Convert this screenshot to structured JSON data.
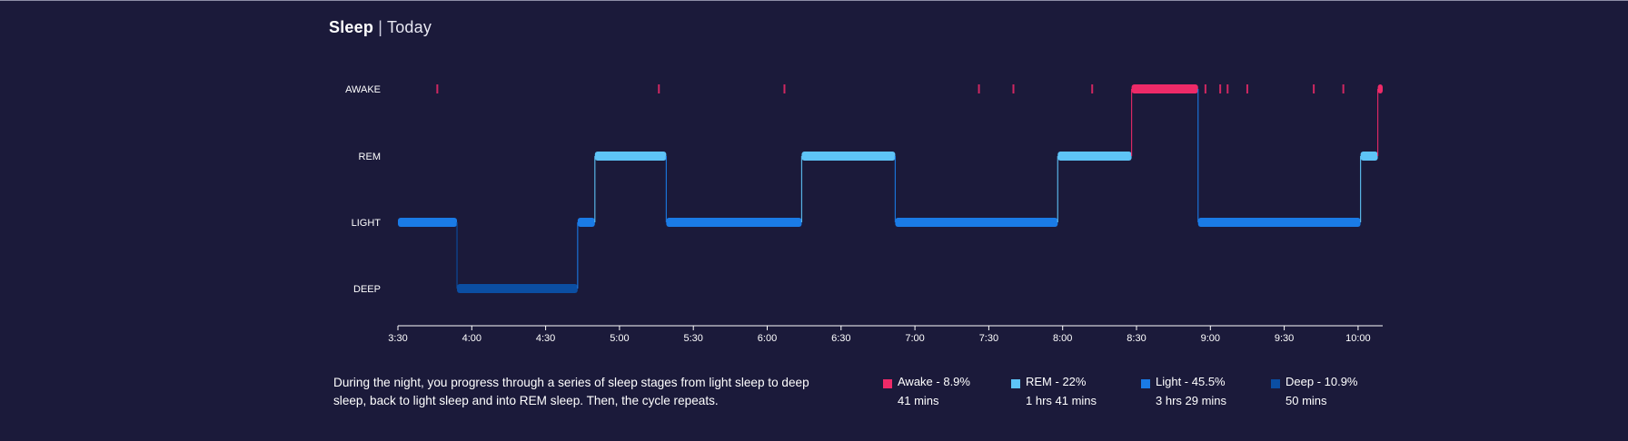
{
  "header": {
    "title": "Sleep",
    "separator": "|",
    "range": "Today"
  },
  "chart_data": {
    "type": "line",
    "xlabel": "",
    "ylabel": "",
    "stages": [
      "DEEP",
      "LIGHT",
      "REM",
      "AWAKE"
    ],
    "x_ticks": [
      "3:30",
      "4:00",
      "4:30",
      "5:00",
      "5:30",
      "6:00",
      "6:30",
      "7:00",
      "7:30",
      "8:00",
      "8:30",
      "9:00",
      "9:30",
      "10:00"
    ],
    "x_range_minutes": [
      210,
      610
    ],
    "colors": {
      "AWAKE": "#ee2a68",
      "REM": "#5ec4f7",
      "LIGHT": "#1a7be6",
      "DEEP": "#0b4ea2"
    },
    "segments": [
      {
        "stage": "LIGHT",
        "start": "3:30",
        "end": "3:54"
      },
      {
        "stage": "DEEP",
        "start": "3:54",
        "end": "4:43"
      },
      {
        "stage": "LIGHT",
        "start": "4:43",
        "end": "4:50"
      },
      {
        "stage": "REM",
        "start": "4:50",
        "end": "5:19"
      },
      {
        "stage": "LIGHT",
        "start": "5:19",
        "end": "6:14"
      },
      {
        "stage": "REM",
        "start": "6:14",
        "end": "6:52"
      },
      {
        "stage": "LIGHT",
        "start": "6:52",
        "end": "7:58"
      },
      {
        "stage": "REM",
        "start": "7:58",
        "end": "8:28"
      },
      {
        "stage": "AWAKE",
        "start": "8:28",
        "end": "8:55"
      },
      {
        "stage": "LIGHT",
        "start": "8:55",
        "end": "10:01"
      },
      {
        "stage": "REM",
        "start": "10:01",
        "end": "10:08"
      },
      {
        "stage": "AWAKE",
        "start": "10:08",
        "end": "10:10"
      }
    ],
    "awake_marks": [
      "3:46",
      "5:16",
      "6:07",
      "7:26",
      "7:40",
      "8:12",
      "8:58",
      "9:04",
      "9:07",
      "9:15",
      "9:42",
      "9:54"
    ]
  },
  "description": "During the night, you progress through a series of sleep stages from light sleep to deep sleep, back to light sleep and into REM sleep. Then, the cycle repeats.",
  "legend": [
    {
      "label": "Awake - 8.9%",
      "duration": "41 mins",
      "color": "#ee2a68"
    },
    {
      "label": "REM - 22%",
      "duration": "1 hrs 41 mins",
      "color": "#5ec4f7"
    },
    {
      "label": "Light - 45.5%",
      "duration": "3 hrs 29 mins",
      "color": "#1a7be6"
    },
    {
      "label": "Deep - 10.9%",
      "duration": "50 mins",
      "color": "#0b4ea2"
    }
  ]
}
